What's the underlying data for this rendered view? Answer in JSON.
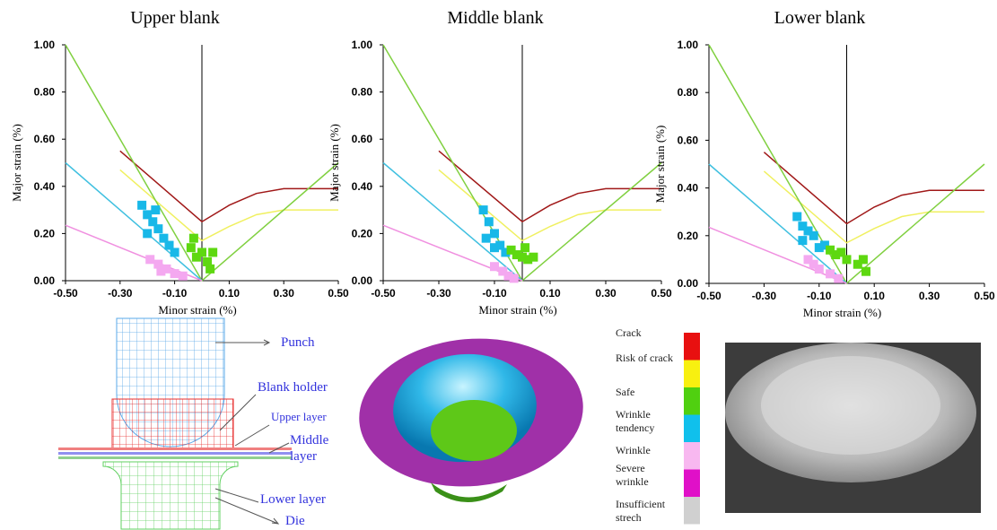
{
  "chart_data": [
    {
      "type": "line",
      "title": "Upper blank",
      "x_label": "Minor strain (%)",
      "y_label": "Major strain (%)",
      "xlim": [
        -0.5,
        0.5
      ],
      "ylim": [
        0,
        1
      ],
      "xticks": [
        {
          "value": -0.5,
          "label": "-0.50"
        },
        {
          "value": -0.3,
          "label": "-0.30"
        },
        {
          "value": -0.1,
          "label": "-0.10"
        },
        {
          "value": 0.1,
          "label": "0.10"
        },
        {
          "value": 0.3,
          "label": "0.30"
        },
        {
          "value": 0.5,
          "label": "0.50"
        }
      ],
      "yticks": [
        {
          "value": 0,
          "label": "0.00"
        },
        {
          "value": 0.2,
          "label": "0.20"
        },
        {
          "value": 0.4,
          "label": "0.40"
        },
        {
          "value": 0.6,
          "label": "0.60"
        },
        {
          "value": 0.8,
          "label": "0.80"
        },
        {
          "value": 1,
          "label": "1.00"
        }
      ],
      "series": [
        {
          "type": "line",
          "color": "#a01818",
          "x": [
            -0.3,
            0,
            0.1,
            0.2,
            0.3,
            0.5
          ],
          "values": [
            0.55,
            0.25,
            0.32,
            0.37,
            0.39,
            0.39
          ]
        },
        {
          "type": "line",
          "color": "#f0f060",
          "x": [
            -0.3,
            0,
            0.1,
            0.2,
            0.3,
            0.5
          ],
          "values": [
            0.47,
            0.17,
            0.23,
            0.28,
            0.3,
            0.3
          ]
        },
        {
          "type": "line",
          "color": "#80d040",
          "x": [
            -0.5,
            0,
            0.5
          ],
          "values": [
            1,
            0,
            0.5
          ]
        },
        {
          "type": "line",
          "color": "#40c0e0",
          "x": [
            -0.5,
            0
          ],
          "values": [
            0.5,
            0
          ]
        },
        {
          "type": "line",
          "color": "#f090e0",
          "x": [
            -0.5,
            0
          ],
          "values": [
            0.235,
            0
          ]
        },
        {
          "type": "scatter",
          "color": "#18b8e8",
          "x": [
            -0.22,
            -0.2,
            -0.18,
            -0.16,
            -0.2,
            -0.14,
            -0.12,
            -0.1,
            -0.17
          ],
          "values": [
            0.32,
            0.28,
            0.25,
            0.22,
            0.2,
            0.18,
            0.15,
            0.12,
            0.3
          ]
        },
        {
          "type": "scatter",
          "color": "#f4a8f0",
          "x": [
            -0.19,
            -0.16,
            -0.13,
            -0.1,
            -0.07,
            -0.15
          ],
          "values": [
            0.09,
            0.07,
            0.05,
            0.03,
            0.02,
            0.04
          ]
        },
        {
          "type": "scatter",
          "color": "#5ed810",
          "x": [
            -0.04,
            -0.02,
            0,
            0.02,
            0.04,
            0.03,
            -0.03
          ],
          "values": [
            0.14,
            0.1,
            0.12,
            0.08,
            0.12,
            0.05,
            0.18
          ]
        }
      ]
    },
    {
      "type": "line",
      "title": "Middle blank",
      "x_label": "Minor strain (%)",
      "y_label": "Major strain (%)",
      "xlim": [
        -0.5,
        0.5
      ],
      "ylim": [
        0,
        1
      ],
      "xticks": [
        {
          "value": -0.5,
          "label": "-0.50"
        },
        {
          "value": -0.3,
          "label": "-0.30"
        },
        {
          "value": -0.1,
          "label": "-0.10"
        },
        {
          "value": 0.1,
          "label": "0.10"
        },
        {
          "value": 0.3,
          "label": "0.30"
        },
        {
          "value": 0.5,
          "label": "0.50"
        }
      ],
      "yticks": [
        {
          "value": 0,
          "label": "0.00"
        },
        {
          "value": 0.2,
          "label": "0.20"
        },
        {
          "value": 0.4,
          "label": "0.40"
        },
        {
          "value": 0.6,
          "label": "0.60"
        },
        {
          "value": 0.8,
          "label": "0.80"
        },
        {
          "value": 1,
          "label": "1.00"
        }
      ],
      "series": [
        {
          "type": "line",
          "color": "#a01818",
          "x": [
            -0.3,
            0,
            0.1,
            0.2,
            0.3,
            0.5
          ],
          "values": [
            0.55,
            0.25,
            0.32,
            0.37,
            0.39,
            0.39
          ]
        },
        {
          "type": "line",
          "color": "#f0f060",
          "x": [
            -0.3,
            0,
            0.1,
            0.2,
            0.3,
            0.5
          ],
          "values": [
            0.47,
            0.17,
            0.23,
            0.28,
            0.3,
            0.3
          ]
        },
        {
          "type": "line",
          "color": "#80d040",
          "x": [
            -0.5,
            0,
            0.5
          ],
          "values": [
            1,
            0,
            0.5
          ]
        },
        {
          "type": "line",
          "color": "#40c0e0",
          "x": [
            -0.5,
            0
          ],
          "values": [
            0.5,
            0
          ]
        },
        {
          "type": "line",
          "color": "#f090e0",
          "x": [
            -0.5,
            0
          ],
          "values": [
            0.235,
            0
          ]
        },
        {
          "type": "scatter",
          "color": "#18b8e8",
          "x": [
            -0.14,
            -0.12,
            -0.1,
            -0.13,
            -0.08,
            -0.06,
            -0.1
          ],
          "values": [
            0.3,
            0.25,
            0.2,
            0.18,
            0.15,
            0.12,
            0.14
          ]
        },
        {
          "type": "scatter",
          "color": "#f4a8f0",
          "x": [
            -0.1,
            -0.07,
            -0.05,
            -0.03
          ],
          "values": [
            0.06,
            0.04,
            0.02,
            0.01
          ]
        },
        {
          "type": "scatter",
          "color": "#5ed810",
          "x": [
            -0.04,
            -0.02,
            0,
            0.02,
            0.04,
            0.01
          ],
          "values": [
            0.13,
            0.11,
            0.1,
            0.09,
            0.1,
            0.14
          ]
        }
      ]
    },
    {
      "type": "line",
      "title": "Lower blank",
      "x_label": "Minor strain (%)",
      "y_label": "Major strain (%)",
      "xlim": [
        -0.5,
        0.5
      ],
      "ylim": [
        0,
        1
      ],
      "xticks": [
        {
          "value": -0.5,
          "label": "-0.50"
        },
        {
          "value": -0.3,
          "label": "-0.30"
        },
        {
          "value": -0.1,
          "label": "-0.10"
        },
        {
          "value": 0.1,
          "label": "0.10"
        },
        {
          "value": 0.3,
          "label": "0.30"
        },
        {
          "value": 0.5,
          "label": "0.50"
        }
      ],
      "yticks": [
        {
          "value": 0,
          "label": "0.00"
        },
        {
          "value": 0.2,
          "label": "0.20"
        },
        {
          "value": 0.4,
          "label": "0.40"
        },
        {
          "value": 0.6,
          "label": "0.60"
        },
        {
          "value": 0.8,
          "label": "0.80"
        },
        {
          "value": 1,
          "label": "1.00"
        }
      ],
      "series": [
        {
          "type": "line",
          "color": "#a01818",
          "x": [
            -0.3,
            0,
            0.1,
            0.2,
            0.3,
            0.5
          ],
          "values": [
            0.55,
            0.25,
            0.32,
            0.37,
            0.39,
            0.39
          ]
        },
        {
          "type": "line",
          "color": "#f0f060",
          "x": [
            -0.3,
            0,
            0.1,
            0.2,
            0.3,
            0.5
          ],
          "values": [
            0.47,
            0.17,
            0.23,
            0.28,
            0.3,
            0.3
          ]
        },
        {
          "type": "line",
          "color": "#80d040",
          "x": [
            -0.5,
            0,
            0.5
          ],
          "values": [
            1,
            0,
            0.5
          ]
        },
        {
          "type": "line",
          "color": "#40c0e0",
          "x": [
            -0.5,
            0
          ],
          "values": [
            0.5,
            0
          ]
        },
        {
          "type": "line",
          "color": "#f090e0",
          "x": [
            -0.5,
            0
          ],
          "values": [
            0.235,
            0
          ]
        },
        {
          "type": "scatter",
          "color": "#18b8e8",
          "x": [
            -0.18,
            -0.16,
            -0.14,
            -0.12,
            -0.16,
            -0.1,
            -0.08
          ],
          "values": [
            0.28,
            0.24,
            0.22,
            0.2,
            0.18,
            0.15,
            0.16
          ]
        },
        {
          "type": "scatter",
          "color": "#f4a8f0",
          "x": [
            -0.14,
            -0.12,
            -0.1,
            -0.06,
            -0.03
          ],
          "values": [
            0.1,
            0.08,
            0.06,
            0.04,
            0.02
          ]
        },
        {
          "type": "scatter",
          "color": "#5ed810",
          "x": [
            -0.06,
            -0.04,
            -0.02,
            0,
            0.04,
            0.06,
            0.07
          ],
          "values": [
            0.14,
            0.12,
            0.13,
            0.1,
            0.08,
            0.1,
            0.05
          ]
        }
      ]
    }
  ],
  "tooling": {
    "labels": [
      "Punch",
      "Blank holder",
      "Upper layer",
      "Middle layer",
      "Lower layer",
      "Die"
    ]
  },
  "legend": [
    {
      "label": "Crack",
      "color": "#e81010"
    },
    {
      "label": "Risk of crack",
      "color": "#f8f010"
    },
    {
      "label": "Safe",
      "color": "#50d010"
    },
    {
      "label": "Wrinkle tendency",
      "color": "#10c0ec"
    },
    {
      "label": "Wrinkle",
      "color": "#f8b8f0"
    },
    {
      "label": "Severe wrinkle",
      "color": "#e010c8"
    },
    {
      "label": "Insufficient strech",
      "color": "#d0d0d0"
    }
  ]
}
